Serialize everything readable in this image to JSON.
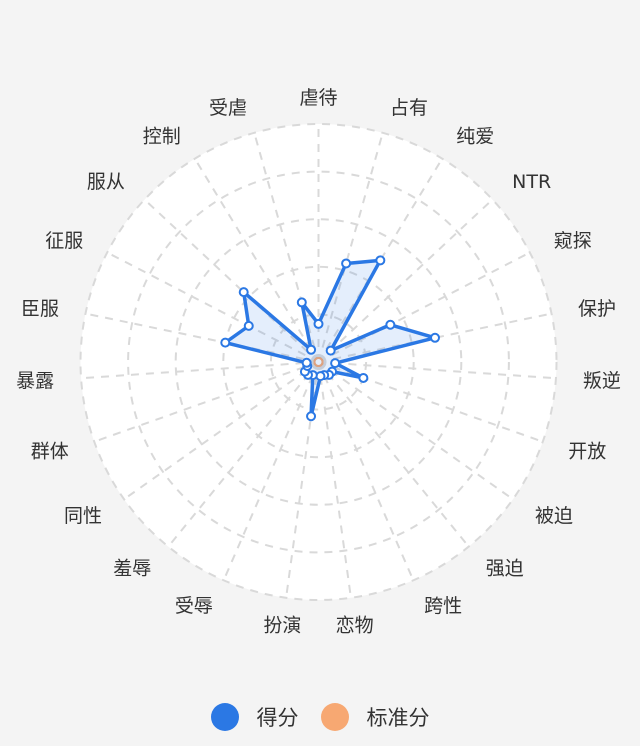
{
  "chart_data": {
    "type": "radar",
    "indicators": [
      "虐待",
      "占有",
      "纯爱",
      "NTR",
      "窥探",
      "保护",
      "叛逆",
      "开放",
      "被迫",
      "强迫",
      "跨性",
      "恋物",
      "扮演",
      "受辱",
      "羞辱",
      "同性",
      "群体",
      "暴露",
      "臣服",
      "征服",
      "服从",
      "控制",
      "受虐"
    ],
    "range": [
      0,
      100
    ],
    "rings": 5,
    "grid": "dashed",
    "legend_position": "bottom",
    "series": [
      {
        "name": "得分",
        "color": "#2b78e4",
        "values": [
          16,
          43,
          50,
          7,
          34,
          50,
          7,
          20,
          7,
          7,
          6,
          6,
          23,
          6,
          7,
          7,
          5,
          5,
          40,
          33,
          43,
          6,
          26
        ]
      },
      {
        "name": "标准分",
        "color": "#f7a872",
        "values": [
          0,
          0,
          0,
          0,
          0,
          0,
          0,
          0,
          0,
          0,
          0,
          0,
          0,
          0,
          0,
          0,
          0,
          0,
          0,
          0,
          0,
          0,
          0
        ]
      }
    ]
  }
}
